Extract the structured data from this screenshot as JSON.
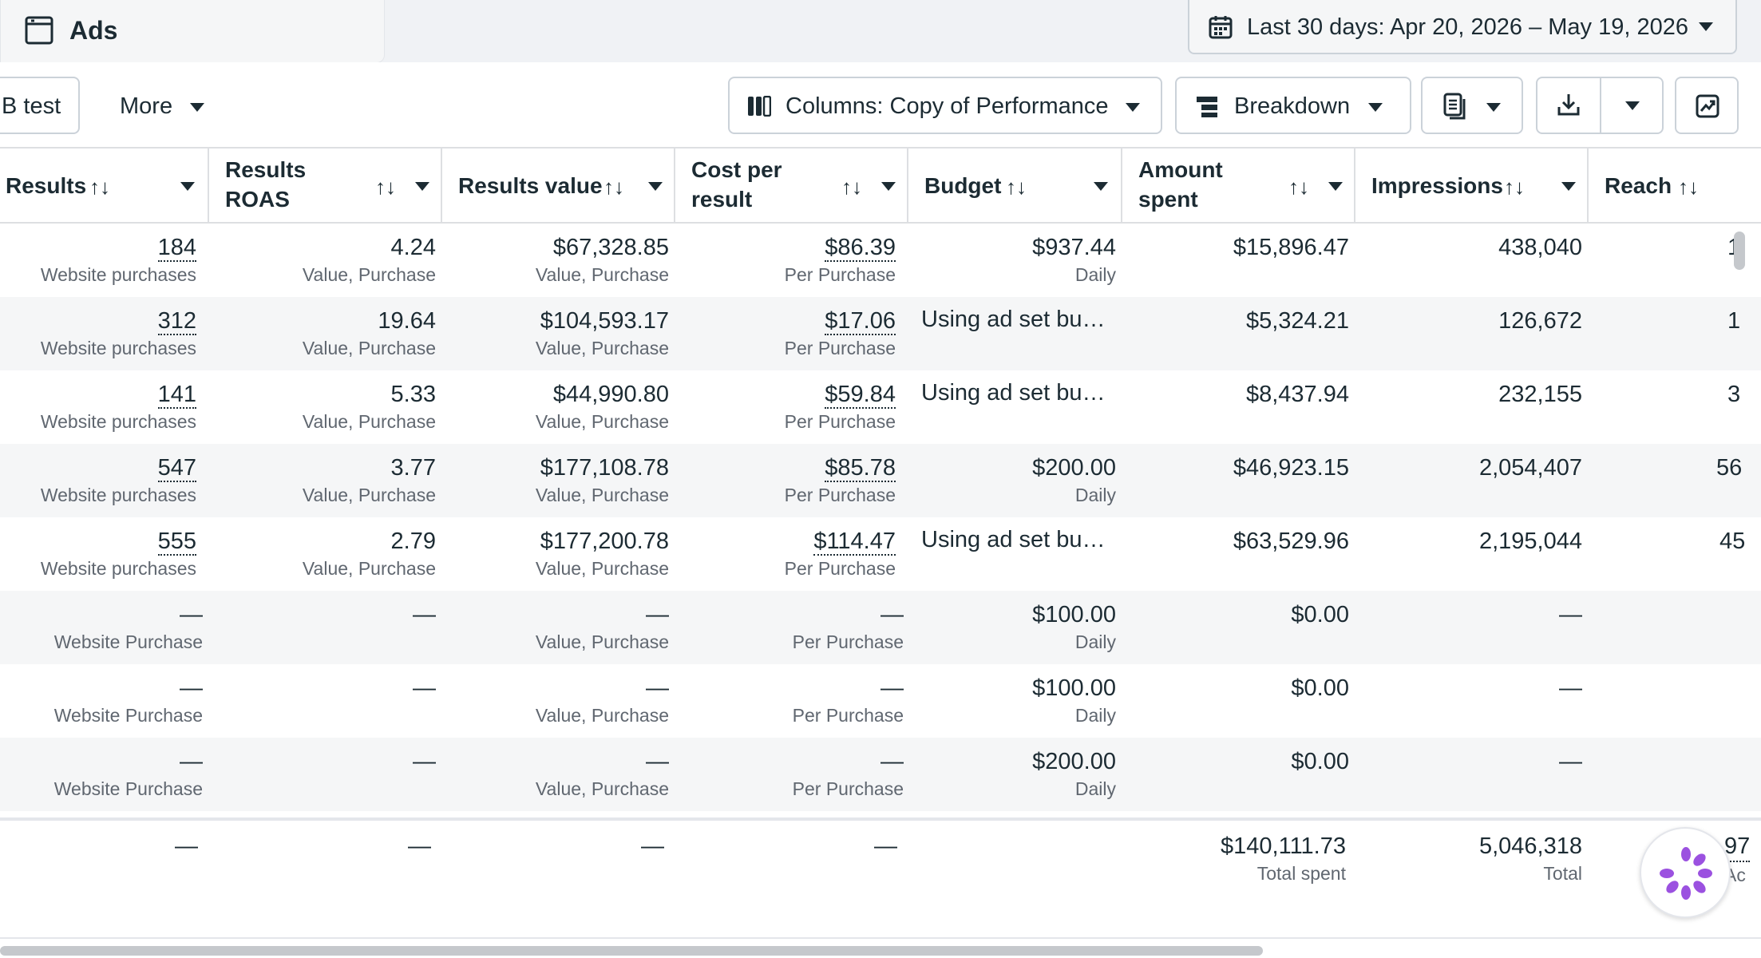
{
  "header": {
    "tab_label": "Ads",
    "date_range": "Last 30 days: Apr 20, 2026 – May 19, 2026"
  },
  "toolbar": {
    "ab_test_label": "B test",
    "more_label": "More",
    "columns_label": "Columns: Copy of Performance",
    "breakdown_label": "Breakdown"
  },
  "columns": [
    {
      "label": "Results"
    },
    {
      "label": "Results ROAS"
    },
    {
      "label": "Results value"
    },
    {
      "label": "Cost per result"
    },
    {
      "label": "Budget"
    },
    {
      "label": "Amount spent"
    },
    {
      "label": "Impressions"
    },
    {
      "label": "Reach"
    }
  ],
  "sort_glyph": "↑↓",
  "rows": [
    {
      "results": "184",
      "results_sub": "Website purchases",
      "roas": "4.24",
      "roas_sub": "Value, Purchase",
      "value": "$67,328.85",
      "value_sub": "Value, Purchase",
      "cpr": "$86.39",
      "cpr_sub": "Per Purchase",
      "budget": "$937.44",
      "budget_sub": "Daily",
      "spent": "$15,896.47",
      "impressions": "438,040",
      "reach": "1"
    },
    {
      "results": "312",
      "results_sub": "Website purchases",
      "roas": "19.64",
      "roas_sub": "Value, Purchase",
      "value": "$104,593.17",
      "value_sub": "Value, Purchase",
      "cpr": "$17.06",
      "cpr_sub": "Per Purchase",
      "budget": "Using ad set bu…",
      "budget_sub": "",
      "spent": "$5,324.21",
      "impressions": "126,672",
      "reach": "1"
    },
    {
      "results": "141",
      "results_sub": "Website purchases",
      "roas": "5.33",
      "roas_sub": "Value, Purchase",
      "value": "$44,990.80",
      "value_sub": "Value, Purchase",
      "cpr": "$59.84",
      "cpr_sub": "Per Purchase",
      "budget": "Using ad set bu…",
      "budget_sub": "",
      "spent": "$8,437.94",
      "impressions": "232,155",
      "reach": "3"
    },
    {
      "results": "547",
      "results_sub": "Website purchases",
      "roas": "3.77",
      "roas_sub": "Value, Purchase",
      "value": "$177,108.78",
      "value_sub": "Value, Purchase",
      "cpr": "$85.78",
      "cpr_sub": "Per Purchase",
      "budget": "$200.00",
      "budget_sub": "Daily",
      "spent": "$46,923.15",
      "impressions": "2,054,407",
      "reach": "56"
    },
    {
      "results": "555",
      "results_sub": "Website purchases",
      "roas": "2.79",
      "roas_sub": "Value, Purchase",
      "value": "$177,200.78",
      "value_sub": "Value, Purchase",
      "cpr": "$114.47",
      "cpr_sub": "Per Purchase",
      "budget": "Using ad set bu…",
      "budget_sub": "",
      "spent": "$63,529.96",
      "impressions": "2,195,044",
      "reach": "45"
    },
    {
      "results": "—",
      "results_sub": "Website Purchase",
      "roas": "—",
      "roas_sub": "",
      "value": "—",
      "value_sub": "Value, Purchase",
      "cpr": "—",
      "cpr_sub": "Per Purchase",
      "budget": "$100.00",
      "budget_sub": "Daily",
      "spent": "$0.00",
      "impressions": "—",
      "reach": ""
    },
    {
      "results": "—",
      "results_sub": "Website Purchase",
      "roas": "—",
      "roas_sub": "",
      "value": "—",
      "value_sub": "Value, Purchase",
      "cpr": "—",
      "cpr_sub": "Per Purchase",
      "budget": "$100.00",
      "budget_sub": "Daily",
      "spent": "$0.00",
      "impressions": "—",
      "reach": ""
    },
    {
      "results": "—",
      "results_sub": "Website Purchase",
      "roas": "—",
      "roas_sub": "",
      "value": "—",
      "value_sub": "Value, Purchase",
      "cpr": "—",
      "cpr_sub": "Per Purchase",
      "budget": "$200.00",
      "budget_sub": "Daily",
      "spent": "$0.00",
      "impressions": "—",
      "reach": ""
    }
  ],
  "totals": {
    "results": "—",
    "roas": "—",
    "value": "—",
    "cpr": "—",
    "spent": "$140,111.73",
    "spent_sub": "Total spent",
    "impressions": "5,046,318",
    "impressions_sub": "Total",
    "reach": "97",
    "reach_sub": "Ac"
  },
  "colors": {
    "stripe": "#f5f6f7",
    "border": "#dddfe2",
    "text": "#1c2b33",
    "muted": "#606770",
    "assistant": "#9b51e0"
  },
  "icons": [
    "ads-tab-icon",
    "calendar-icon",
    "columns-icon",
    "breakdown-icon",
    "reports-icon",
    "export-icon",
    "chart-share-icon",
    "assistant-icon"
  ]
}
